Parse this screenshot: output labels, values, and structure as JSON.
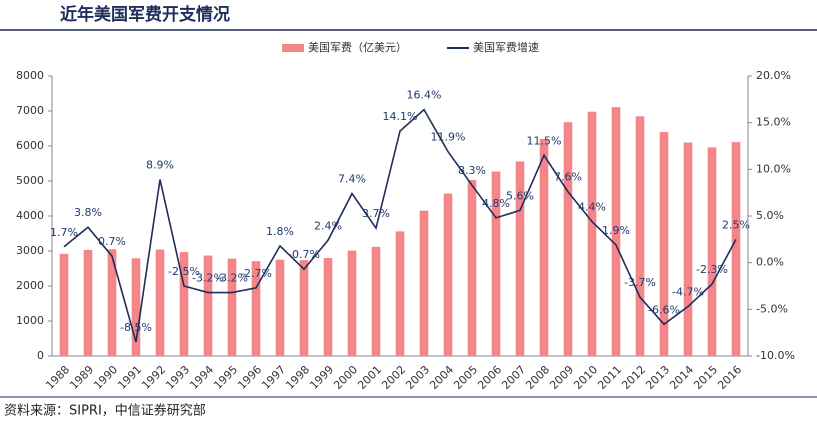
{
  "chart_data": {
    "type": "bar_line",
    "title": "近年美国军费开支情况",
    "source": "资料来源：SIPRI，中信证券研究部",
    "categories": [
      "1988",
      "1989",
      "1990",
      "1991",
      "1992",
      "1993",
      "1994",
      "1995",
      "1996",
      "1997",
      "1998",
      "1999",
      "2000",
      "2001",
      "2002",
      "2003",
      "2004",
      "2005",
      "2006",
      "2007",
      "2008",
      "2009",
      "2010",
      "2011",
      "2012",
      "2013",
      "2014",
      "2015",
      "2016"
    ],
    "series": [
      {
        "name": "美国军费（亿美元）",
        "type": "bar",
        "color": "#f4868a",
        "values": [
          2920,
          3030,
          3050,
          2790,
          3040,
          2970,
          2870,
          2780,
          2710,
          2750,
          2740,
          2800,
          3010,
          3120,
          3560,
          4150,
          4640,
          5030,
          5270,
          5560,
          6200,
          6680,
          6980,
          7110,
          6850,
          6400,
          6100,
          5960,
          6110
        ]
      },
      {
        "name": "美国军费增速",
        "type": "line",
        "axis": "y2",
        "color": "#1f2d5a",
        "values": [
          1.7,
          3.8,
          0.7,
          -8.5,
          8.9,
          -2.5,
          -3.2,
          -3.2,
          -2.7,
          1.8,
          -0.7,
          2.4,
          7.4,
          3.7,
          14.1,
          16.4,
          11.9,
          8.3,
          4.8,
          5.6,
          11.5,
          7.6,
          4.4,
          1.9,
          -3.7,
          -6.6,
          -4.7,
          -2.3,
          2.5
        ],
        "value_labels": [
          "1.7%",
          "3.8%",
          "0.7%",
          "-8.5%",
          "8.9%",
          "-2.5%",
          "-3.2%",
          "-3.2%",
          "-2.7%",
          "1.8%",
          "-0.7%",
          "2.4%",
          "7.4%",
          "3.7%",
          "14.1%",
          "16.4%",
          "11.9%",
          "8.3%",
          "4.8%",
          "5.6%",
          "11.5%",
          "7.6%",
          "4.4%",
          "1.9%",
          "-3.7%",
          "-6.6%",
          "-4.7%",
          "-2.3%",
          "2.5%"
        ]
      }
    ],
    "ylim": [
      0,
      8000
    ],
    "yticks": [
      0,
      1000,
      2000,
      3000,
      4000,
      5000,
      6000,
      7000,
      8000
    ],
    "y2lim": [
      -10,
      20
    ],
    "y2ticks": [
      {
        "value": -10,
        "label": "-10.0%"
      },
      {
        "value": -5,
        "label": "-5.0%"
      },
      {
        "value": 0,
        "label": "0.0%"
      },
      {
        "value": 5,
        "label": "5.0%"
      },
      {
        "value": 10,
        "label": "10.0%"
      },
      {
        "value": 15,
        "label": "15.0%"
      },
      {
        "value": 20,
        "label": "20.0%"
      }
    ],
    "legend": "top",
    "grid": false
  }
}
